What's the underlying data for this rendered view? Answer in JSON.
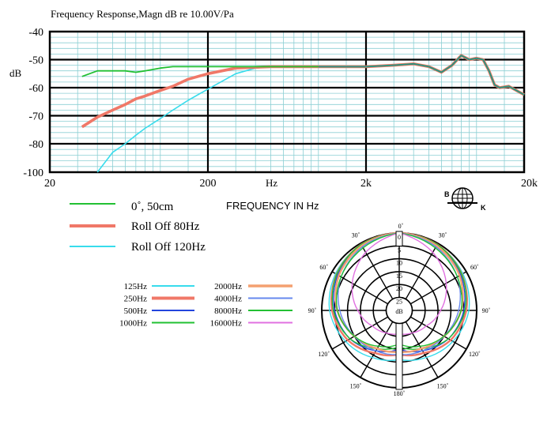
{
  "freq_chart": {
    "title": "Frequency   Response,Magn   dB re 10.00V/Pa",
    "ylabel": "dB",
    "xlabel": "FREQUENCY  IN  Hz",
    "x_unit_tick": "Hz",
    "y_ticks": [
      "-40",
      "-50",
      "-60",
      "-70",
      "-80",
      "-100"
    ],
    "x_ticks": [
      "20",
      "200",
      "2k",
      "20k"
    ],
    "legend": [
      {
        "label": "0˚, 50cm",
        "color": "#22c033"
      },
      {
        "label": "Roll Off  80Hz",
        "color": "#f07868"
      },
      {
        "label": "Roll Off  120Hz",
        "color": "#38dcec"
      }
    ]
  },
  "polar_chart": {
    "left_angle_labels": [
      "30˚",
      "60˚",
      "90˚",
      "120˚",
      "150˚"
    ],
    "right_angle_labels": [
      "30˚",
      "60˚",
      "90˚",
      "120˚",
      "150˚"
    ],
    "top_label": "0˚",
    "bottom_label": "180˚",
    "radial_labels": [
      "0",
      "5",
      "10",
      "15",
      "20",
      "25"
    ],
    "center_label": "dB",
    "legend_left": [
      {
        "label": "125Hz",
        "color": "#38dcec"
      },
      {
        "label": "250Hz",
        "color": "#f07868"
      },
      {
        "label": "500Hz",
        "color": "#2244dd"
      },
      {
        "label": "1000Hz",
        "color": "#22c033"
      }
    ],
    "legend_right": [
      {
        "label": "2000Hz",
        "color": "#f4a070"
      },
      {
        "label": "4000Hz",
        "color": "#6688ee"
      },
      {
        "label": "8000Hz",
        "color": "#22c033"
      },
      {
        "label": "16000Hz",
        "color": "#e070e0"
      }
    ]
  },
  "logo": {
    "left_letter": "B",
    "right_letter": "K"
  },
  "chart_data": [
    {
      "type": "line",
      "title": "Frequency   Response,Magn   dB re 10.00V/Pa",
      "xlabel": "FREQUENCY  IN  Hz",
      "ylabel": "dB",
      "x_scale": "log",
      "xlim": [
        20,
        20000
      ],
      "y_ticks": [
        -40,
        -50,
        -60,
        -70,
        -80,
        -100
      ],
      "grid": true,
      "series": [
        {
          "name": "0˚, 50cm",
          "color": "#22c033",
          "x": [
            32,
            40,
            50,
            60,
            70,
            80,
            100,
            120,
            150,
            200,
            300,
            500,
            1000,
            2000,
            3000,
            4000,
            5000,
            6000,
            7000,
            8000,
            9000,
            10000,
            11000,
            12000,
            13000,
            14000,
            16000,
            20000
          ],
          "y": [
            -56,
            -54,
            -54,
            -54,
            -54.5,
            -54,
            -53,
            -52.5,
            -52.5,
            -52.5,
            -52.5,
            -52.5,
            -52.5,
            -52.5,
            -52,
            -51.5,
            -52.5,
            -54.5,
            -52,
            -48.5,
            -50,
            -49.5,
            -50,
            -54,
            -59,
            -60,
            -59.5,
            -62.5
          ]
        },
        {
          "name": "Roll Off  80Hz",
          "color": "#f07868",
          "x": [
            32,
            40,
            50,
            60,
            70,
            80,
            100,
            120,
            150,
            200,
            300,
            500,
            1000,
            2000,
            3000,
            4000,
            5000,
            6000,
            7000,
            8000,
            9000,
            10000,
            11000,
            12000,
            13000,
            14000,
            16000,
            20000
          ],
          "y": [
            -74,
            -70.5,
            -68,
            -66,
            -64,
            -63,
            -61,
            -59.5,
            -57,
            -55,
            -53,
            -52.5,
            -52.5,
            -52.5,
            -52,
            -51.5,
            -52.5,
            -54.5,
            -52,
            -48.5,
            -50,
            -49.5,
            -50,
            -54,
            -59,
            -60,
            -59.5,
            -62.5
          ]
        },
        {
          "name": "Roll Off  120Hz",
          "color": "#38dcec",
          "x": [
            40,
            50,
            60,
            70,
            80,
            100,
            120,
            150,
            200,
            300,
            400,
            500,
            1000,
            2000,
            3000,
            4000,
            5000,
            6000,
            7000,
            8000,
            9000,
            10000,
            11000,
            12000,
            13000,
            14000,
            16000,
            20000
          ],
          "y": [
            -100,
            -86,
            -80,
            -77,
            -74.5,
            -71,
            -68,
            -64.5,
            -60.5,
            -55,
            -53,
            -52.5,
            -52.5,
            -52.5,
            -52,
            -51.5,
            -52.5,
            -54.5,
            -52,
            -48.5,
            -50,
            -49.5,
            -50,
            -54,
            -59,
            -60,
            -59.5,
            -62.5
          ]
        }
      ]
    },
    {
      "type": "polar",
      "angle_unit": "degrees",
      "value_unit": "dB attenuation",
      "rlim": [
        0,
        25
      ],
      "series": [
        {
          "name": "125Hz",
          "color": "#38dcec",
          "angles": [
            0,
            30,
            60,
            90,
            120,
            150,
            180
          ],
          "values": [
            0,
            0.5,
            1.5,
            3,
            6,
            9,
            11
          ]
        },
        {
          "name": "250Hz",
          "color": "#f07868",
          "angles": [
            0,
            30,
            60,
            90,
            120,
            150,
            180
          ],
          "values": [
            0,
            0.5,
            2,
            4,
            7,
            11,
            13
          ]
        },
        {
          "name": "500Hz",
          "color": "#2244dd",
          "angles": [
            0,
            30,
            60,
            90,
            120,
            150,
            180
          ],
          "values": [
            0,
            1,
            2.5,
            5,
            8,
            12,
            15
          ]
        },
        {
          "name": "1000Hz",
          "color": "#22c033",
          "angles": [
            0,
            30,
            60,
            90,
            120,
            150,
            180
          ],
          "values": [
            0,
            0.5,
            2,
            4.5,
            8,
            13,
            16
          ]
        },
        {
          "name": "2000Hz",
          "color": "#f4a070",
          "angles": [
            0,
            30,
            60,
            90,
            120,
            150,
            180
          ],
          "values": [
            0,
            1,
            3,
            6,
            10,
            13,
            14
          ]
        },
        {
          "name": "4000Hz",
          "color": "#6688ee",
          "angles": [
            0,
            30,
            60,
            90,
            120,
            150,
            180
          ],
          "values": [
            0,
            1.5,
            4,
            7,
            10,
            12,
            13
          ]
        },
        {
          "name": "8000Hz",
          "color": "#22c033",
          "angles": [
            0,
            30,
            60,
            90,
            120,
            150,
            180
          ],
          "values": [
            0,
            2,
            4,
            6,
            10,
            14,
            17
          ]
        },
        {
          "name": "16000Hz",
          "color": "#e070e0",
          "angles": [
            0,
            30,
            60,
            90,
            120,
            150,
            180
          ],
          "values": [
            0,
            4,
            9,
            14,
            18,
            20,
            21
          ]
        }
      ]
    }
  ]
}
